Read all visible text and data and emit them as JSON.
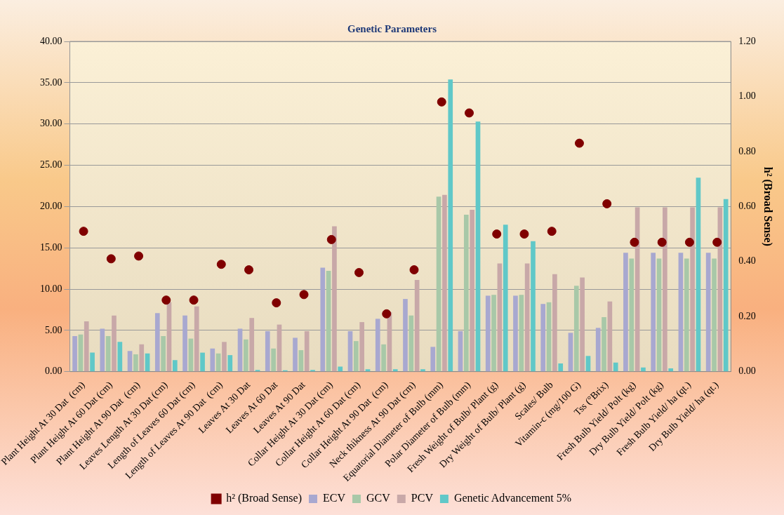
{
  "chart_data": {
    "type": "bar",
    "title": "Genetic Parameters",
    "y2label": "h² (Broad Sense)",
    "categories": [
      "Plant Height At 30 Dat  (cm)",
      "Plant Height At 60 Dat (cm)",
      "Plant Height At 90 Dat  (cm)",
      "Leaves Length At 30 Dat (cm)",
      "Length of Leaves 60 Dat (cm)",
      "Length of Leaves At 90 Dat  (cm)",
      "Leaves At 30 Dat",
      "Leaves At 60 Dat",
      "Leaves At 90 Dat",
      "Collar Height At 30 Dat (cm)",
      "Collar Height At 60 Dat (cm)",
      "Collar Height At 90 Dat  (cm)",
      "Neck thikness At 90 Dat (cm)",
      "Equatorial Diameter of Bulb (mm)",
      "Polar Diameter of Bulb (mm)",
      "Fresh Weight of Bulb/ Plant (g)",
      "Dry Weight of Bulb/ Plant (g)",
      "Scales/ Bulb",
      "Vitamin-c (mg/100 G)",
      "Tss (°Brix)",
      "Fresh Bulb Yield/ Polt (kg)",
      "Dry Bulb Yield/ Polt (kg)",
      "Fresh Bulb Yield/ ha (qt.)",
      "Dry Bulb Yield/ ha (qt.)"
    ],
    "series": [
      {
        "name": "ECV",
        "color": "#a8a8d0",
        "values": [
          4.3,
          5.2,
          2.5,
          7.1,
          6.8,
          2.8,
          5.2,
          4.9,
          4.1,
          12.6,
          4.9,
          6.4,
          8.8,
          3.0,
          4.9,
          9.2,
          9.2,
          8.2,
          4.7,
          5.3,
          14.4,
          14.4,
          14.4,
          14.4
        ]
      },
      {
        "name": "GCV",
        "color": "#a8c8a8",
        "values": [
          4.5,
          4.3,
          2.1,
          4.3,
          4.0,
          2.2,
          3.9,
          2.8,
          2.6,
          12.2,
          3.7,
          3.3,
          6.8,
          21.2,
          19.0,
          9.3,
          9.3,
          8.4,
          10.4,
          6.6,
          13.7,
          13.7,
          13.7,
          13.7
        ]
      },
      {
        "name": "PCV",
        "color": "#c8a8a8",
        "values": [
          6.1,
          6.8,
          3.3,
          8.4,
          7.9,
          3.6,
          6.5,
          5.7,
          4.9,
          17.6,
          6.0,
          7.2,
          11.1,
          21.4,
          19.6,
          13.1,
          13.1,
          11.8,
          11.4,
          8.5,
          19.9,
          19.9,
          19.9,
          19.9
        ]
      },
      {
        "name": "Genetic Advancement 5%",
        "color": "#60c8c8",
        "values": [
          2.3,
          3.6,
          2.2,
          1.4,
          2.3,
          2.0,
          0.2,
          0.1,
          0.2,
          0.6,
          0.3,
          0.3,
          0.3,
          35.4,
          30.3,
          17.8,
          15.8,
          1.0,
          1.9,
          1.1,
          0.5,
          0.4,
          23.5,
          20.9
        ]
      },
      {
        "name": "h² (Broad Sense)",
        "type": "scatter",
        "axis": "y2",
        "color": "#800000",
        "x": [
          "Plant Height At 30 Dat  (cm)",
          "Plant Height At 60 Dat (cm)",
          "Plant Height At 90 Dat  (cm)",
          "Leaves Length At 30 Dat (cm)",
          "Length of Leaves 60 Dat (cm)",
          "Length of Leaves At 90 Dat  (cm)",
          "Leaves At 30 Dat",
          "Leaves At 60 Dat",
          "Leaves At 90 Dat",
          "Collar Height At 30 Dat (cm)",
          "Collar Height At 60 Dat (cm)",
          "Collar Height At 90 Dat  (cm)",
          "Neck thikness At 90 Dat (cm)",
          "Equatorial Diameter of Bulb (mm)",
          "Polar Diameter of Bulb (mm)",
          "Fresh Weight of Bulb/ Plant (g)",
          "Dry Weight of Bulb/ Plant (g)",
          "Scales/ Bulb",
          "Vitamin-c (mg/100 G)",
          "Tss (°Brix)",
          "Fresh Bulb Yield/ Polt (kg)",
          "Dry Bulb Yield/ Polt (kg)",
          "Fresh Bulb Yield/ ha (qt.)",
          "Dry Bulb Yield/ ha (qt.)"
        ],
        "values": [
          0.51,
          0.41,
          0.42,
          0.26,
          0.26,
          0.39,
          0.37,
          0.25,
          0.28,
          0.48,
          0.36,
          0.21,
          0.37,
          0.98,
          0.94,
          0.5,
          0.5,
          0.51,
          0.83,
          0.61,
          0.47,
          0.47,
          0.47,
          0.47
        ]
      }
    ],
    "ylim": [
      0,
      40
    ],
    "yticks": [
      {
        "value": 0,
        "label": "0.00"
      },
      {
        "value": 5,
        "label": "5.00"
      },
      {
        "value": 10,
        "label": "10.00"
      },
      {
        "value": 15,
        "label": "15.00"
      },
      {
        "value": 20,
        "label": "20.00"
      },
      {
        "value": 25,
        "label": "25.00"
      },
      {
        "value": 30,
        "label": "30.00"
      },
      {
        "value": 35,
        "label": "35.00"
      },
      {
        "value": 40,
        "label": "40.00"
      }
    ],
    "y2lim": [
      0,
      1.2
    ],
    "y2ticks": [
      {
        "value": 0,
        "label": "0.00"
      },
      {
        "value": 0.2,
        "label": "0.20"
      },
      {
        "value": 0.4,
        "label": "0.40"
      },
      {
        "value": 0.6,
        "label": "0.60"
      },
      {
        "value": 0.8,
        "label": "0.80"
      },
      {
        "value": 1,
        "label": "1.00"
      },
      {
        "value": 1.2,
        "label": "1.20"
      }
    ],
    "grid": "y",
    "legend": "bottom",
    "marker": "circle"
  }
}
